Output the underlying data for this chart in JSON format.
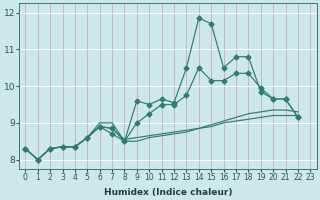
{
  "xlabel": "Humidex (Indice chaleur)",
  "bg_color": "#cce8e8",
  "grid_color": "#b0d0d0",
  "line_color": "#2e7d6e",
  "xmin": -0.5,
  "xmax": 23.5,
  "ymin": 7.75,
  "ymax": 12.25,
  "yticks": [
    8,
    9,
    10,
    11,
    12
  ],
  "xticks": [
    0,
    1,
    2,
    3,
    4,
    5,
    6,
    7,
    8,
    9,
    10,
    11,
    12,
    13,
    14,
    15,
    16,
    17,
    18,
    19,
    20,
    21,
    22,
    23
  ],
  "series": [
    {
      "y": [
        8.3,
        8.0,
        8.3,
        8.35,
        8.35,
        8.6,
        8.9,
        8.7,
        8.5,
        9.6,
        9.5,
        9.65,
        9.55,
        10.5,
        11.85,
        11.7,
        10.5,
        10.8,
        10.8,
        9.85,
        9.65,
        9.65,
        9.15
      ],
      "marker": true
    },
    {
      "y": [
        8.3,
        8.0,
        8.3,
        8.35,
        8.35,
        8.6,
        8.9,
        8.85,
        8.5,
        9.0,
        9.25,
        9.5,
        9.5,
        9.75,
        10.5,
        10.15,
        10.15,
        10.35,
        10.35,
        9.95,
        9.65,
        9.65,
        9.15
      ],
      "marker": true
    },
    {
      "y": [
        8.3,
        8.0,
        8.3,
        8.35,
        8.35,
        8.6,
        9.0,
        9.0,
        8.5,
        8.5,
        8.6,
        8.65,
        8.7,
        8.75,
        8.85,
        8.95,
        9.05,
        9.15,
        9.25,
        9.3,
        9.35,
        9.35,
        9.3
      ],
      "marker": false
    },
    {
      "y": [
        8.3,
        8.0,
        8.3,
        8.35,
        8.35,
        8.6,
        8.9,
        8.85,
        8.55,
        8.6,
        8.65,
        8.7,
        8.75,
        8.8,
        8.85,
        8.9,
        9.0,
        9.05,
        9.1,
        9.15,
        9.2,
        9.2,
        9.2
      ],
      "marker": false
    }
  ],
  "marker_style": "D",
  "marker_size": 2.5,
  "linewidth": 0.85,
  "xlabel_fontsize": 6.5,
  "tick_fontsize": 5.5,
  "ytick_fontsize": 6.5
}
